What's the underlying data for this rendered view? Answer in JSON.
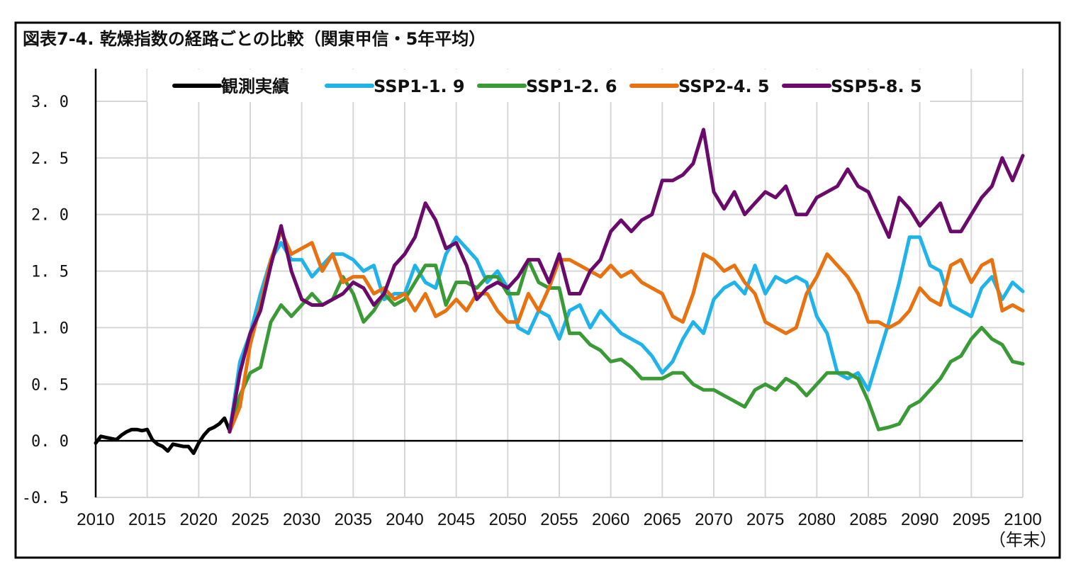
{
  "chart_data": {
    "type": "line",
    "title": "図表7-4. 乾燥指数の経路ごとの比較（関東甲信・5年平均）",
    "xlabel": "",
    "x_unit_label": "（年末）",
    "ylabel": "",
    "xlim": [
      2010,
      2100
    ],
    "ylim": [
      -0.5,
      3.0
    ],
    "x_ticks": [
      "2010",
      "2015",
      "2020",
      "2025",
      "2030",
      "2035",
      "2040",
      "2045",
      "2050",
      "2055",
      "2060",
      "2065",
      "2070",
      "2075",
      "2080",
      "2085",
      "2090",
      "2095",
      "2100"
    ],
    "y_ticks": [
      "-0.5",
      "0.0",
      "0.5",
      "1.0",
      "1.5",
      "2.0",
      "2.5",
      "3.0"
    ],
    "grid": true,
    "legend_position": "top",
    "series": [
      {
        "name": "観測実績",
        "color": "#000000",
        "x": [
          2010,
          2010.5,
          2011,
          2011.5,
          2012,
          2012.5,
          2013,
          2013.5,
          2014,
          2014.5,
          2015,
          2015.5,
          2016,
          2016.5,
          2017,
          2017.5,
          2018,
          2018.5,
          2019,
          2019.5,
          2020,
          2020.5,
          2021,
          2021.5,
          2022,
          2022.5,
          2023
        ],
        "y": [
          -0.02,
          0.04,
          0.03,
          0.02,
          0.01,
          0.05,
          0.08,
          0.1,
          0.1,
          0.09,
          0.1,
          0.01,
          -0.03,
          -0.05,
          -0.09,
          -0.03,
          -0.04,
          -0.05,
          -0.05,
          -0.11,
          -0.02,
          0.05,
          0.1,
          0.12,
          0.15,
          0.2,
          0.09
        ]
      },
      {
        "name": "SSP1-1.9",
        "color": "#1fb3ea",
        "x_start": 2023,
        "y": [
          0.08,
          0.7,
          0.95,
          1.3,
          1.6,
          1.75,
          1.6,
          1.6,
          1.45,
          1.55,
          1.65,
          1.65,
          1.6,
          1.5,
          1.55,
          1.25,
          1.3,
          1.3,
          1.55,
          1.4,
          1.35,
          1.65,
          1.8,
          1.7,
          1.6,
          1.4,
          1.5,
          1.35,
          1.0,
          0.95,
          1.15,
          1.1,
          0.9,
          1.15,
          1.2,
          1.0,
          1.15,
          1.05,
          0.95,
          0.9,
          0.85,
          0.75,
          0.6,
          0.7,
          0.9,
          1.05,
          0.95,
          1.25,
          1.35,
          1.4,
          1.3,
          1.55,
          1.3,
          1.45,
          1.4,
          1.45,
          1.4,
          1.1,
          0.95,
          0.6,
          0.55,
          0.6,
          0.45,
          0.75,
          1.05,
          1.4,
          1.8,
          1.8,
          1.55,
          1.5,
          1.2,
          1.15,
          1.1,
          1.35,
          1.45,
          1.25,
          1.4,
          1.32
        ]
      },
      {
        "name": "SSP1-2.6",
        "color": "#3a9a35",
        "x_start": 2023,
        "y": [
          0.08,
          0.4,
          0.6,
          0.65,
          1.05,
          1.2,
          1.1,
          1.2,
          1.3,
          1.2,
          1.25,
          1.45,
          1.3,
          1.05,
          1.15,
          1.3,
          1.2,
          1.25,
          1.4,
          1.55,
          1.55,
          1.2,
          1.4,
          1.4,
          1.35,
          1.45,
          1.45,
          1.3,
          1.3,
          1.6,
          1.4,
          1.35,
          1.35,
          0.95,
          0.95,
          0.85,
          0.8,
          0.7,
          0.72,
          0.65,
          0.55,
          0.55,
          0.55,
          0.6,
          0.6,
          0.5,
          0.45,
          0.45,
          0.4,
          0.35,
          0.3,
          0.45,
          0.5,
          0.45,
          0.55,
          0.5,
          0.4,
          0.5,
          0.6,
          0.6,
          0.6,
          0.55,
          0.35,
          0.1,
          0.12,
          0.15,
          0.3,
          0.35,
          0.45,
          0.55,
          0.7,
          0.75,
          0.9,
          1.0,
          0.9,
          0.85,
          0.7,
          0.68
        ]
      },
      {
        "name": "SSP2-4.5",
        "color": "#e8720f",
        "x_start": 2023,
        "y": [
          0.08,
          0.3,
          0.85,
          1.2,
          1.6,
          1.85,
          1.65,
          1.7,
          1.75,
          1.5,
          1.65,
          1.4,
          1.45,
          1.45,
          1.3,
          1.35,
          1.25,
          1.3,
          1.15,
          1.3,
          1.1,
          1.15,
          1.25,
          1.15,
          1.3,
          1.3,
          1.15,
          1.05,
          1.05,
          1.3,
          1.15,
          1.35,
          1.6,
          1.6,
          1.55,
          1.5,
          1.45,
          1.55,
          1.45,
          1.5,
          1.4,
          1.35,
          1.3,
          1.1,
          1.05,
          1.3,
          1.65,
          1.6,
          1.5,
          1.55,
          1.4,
          1.3,
          1.05,
          1.0,
          0.95,
          1.0,
          1.3,
          1.45,
          1.65,
          1.55,
          1.45,
          1.3,
          1.05,
          1.05,
          1.0,
          1.05,
          1.15,
          1.35,
          1.25,
          1.2,
          1.55,
          1.6,
          1.4,
          1.55,
          1.6,
          1.15,
          1.2,
          1.15
        ]
      },
      {
        "name": "SSP5-8.5",
        "color": "#6a0a6a",
        "x_start": 2023,
        "y": [
          0.08,
          0.6,
          0.95,
          1.15,
          1.55,
          1.9,
          1.5,
          1.25,
          1.2,
          1.2,
          1.25,
          1.3,
          1.4,
          1.35,
          1.2,
          1.3,
          1.55,
          1.65,
          1.8,
          2.1,
          1.95,
          1.7,
          1.75,
          1.55,
          1.25,
          1.35,
          1.4,
          1.35,
          1.45,
          1.6,
          1.6,
          1.4,
          1.65,
          1.3,
          1.3,
          1.5,
          1.6,
          1.85,
          1.95,
          1.85,
          1.95,
          2.0,
          2.3,
          2.3,
          2.35,
          2.45,
          2.75,
          2.2,
          2.05,
          2.2,
          2.0,
          2.1,
          2.2,
          2.15,
          2.25,
          2.0,
          2.0,
          2.15,
          2.2,
          2.25,
          2.4,
          2.25,
          2.2,
          2.0,
          1.8,
          2.15,
          2.05,
          1.9,
          2.0,
          2.1,
          1.85,
          1.85,
          2.0,
          2.15,
          2.25,
          2.5,
          2.3,
          2.52
        ]
      }
    ]
  }
}
